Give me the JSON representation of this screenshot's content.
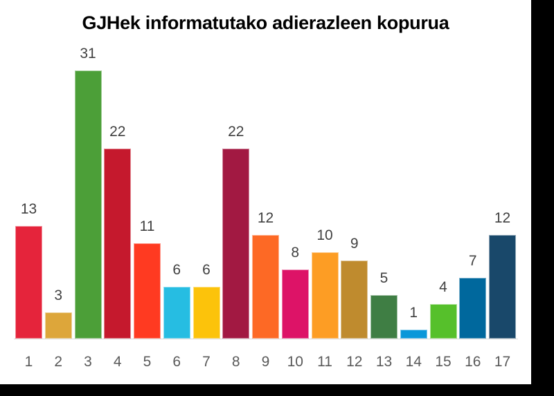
{
  "chart_data": {
    "type": "bar",
    "title": "GJHek informatutako adierazleen kopurua",
    "xlabel": "",
    "ylabel": "",
    "categories": [
      "1",
      "2",
      "3",
      "4",
      "5",
      "6",
      "7",
      "8",
      "9",
      "10",
      "11",
      "12",
      "13",
      "14",
      "15",
      "16",
      "17"
    ],
    "values": [
      13,
      3,
      31,
      22,
      11,
      6,
      6,
      22,
      12,
      8,
      10,
      9,
      5,
      1,
      4,
      7,
      12
    ],
    "colors": [
      "#E5243B",
      "#DDA63A",
      "#4C9F38",
      "#C5192D",
      "#FF3A21",
      "#26BDE2",
      "#FCC30B",
      "#A21942",
      "#FD6925",
      "#DD1367",
      "#FD9D24",
      "#BF8B2E",
      "#3F7E44",
      "#0A97D9",
      "#56C02B",
      "#00689D",
      "#19486A"
    ],
    "data_labels": true,
    "grid": false,
    "legend": null,
    "ylim": [
      0,
      31
    ]
  }
}
